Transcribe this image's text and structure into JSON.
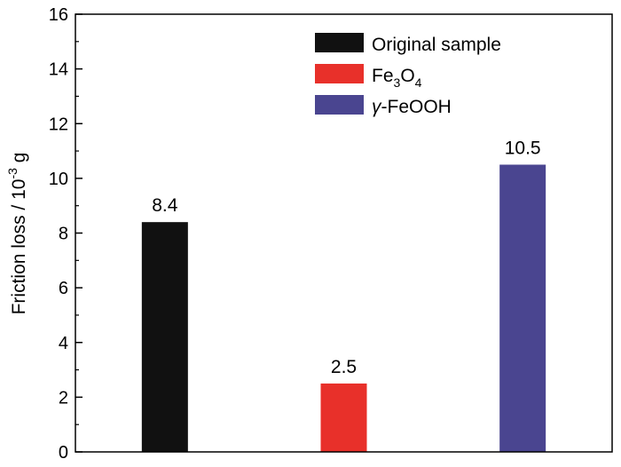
{
  "chart_data": {
    "type": "bar",
    "categories": [
      "Original sample",
      "Fe3O4",
      "γ-FeOOH"
    ],
    "values": [
      8.4,
      2.5,
      10.5
    ],
    "data_labels": [
      "8.4",
      "2.5",
      "10.5"
    ],
    "colors": [
      "#111111",
      "#e8302a",
      "#4a4590"
    ],
    "ylabel": {
      "prefix": "Friction loss / 10",
      "exponent": "-3",
      "suffix": " g"
    },
    "ylim": [
      0,
      16
    ],
    "yticks": [
      0,
      2,
      4,
      6,
      8,
      10,
      12,
      14,
      16
    ],
    "ytick_labels": [
      "0",
      "2",
      "4",
      "6",
      "8",
      "10",
      "12",
      "14",
      "16"
    ],
    "grid": false,
    "legend": {
      "placement": "top-right",
      "entries": [
        {
          "parts": [
            {
              "t": "Original sample"
            }
          ]
        },
        {
          "parts": [
            {
              "t": "Fe"
            },
            {
              "t": "3",
              "sub": true
            },
            {
              "t": "O"
            },
            {
              "t": "4",
              "sub": true
            }
          ]
        },
        {
          "parts": [
            {
              "t": "γ",
              "italic": true
            },
            {
              "t": "-FeOOH"
            }
          ]
        }
      ]
    }
  }
}
